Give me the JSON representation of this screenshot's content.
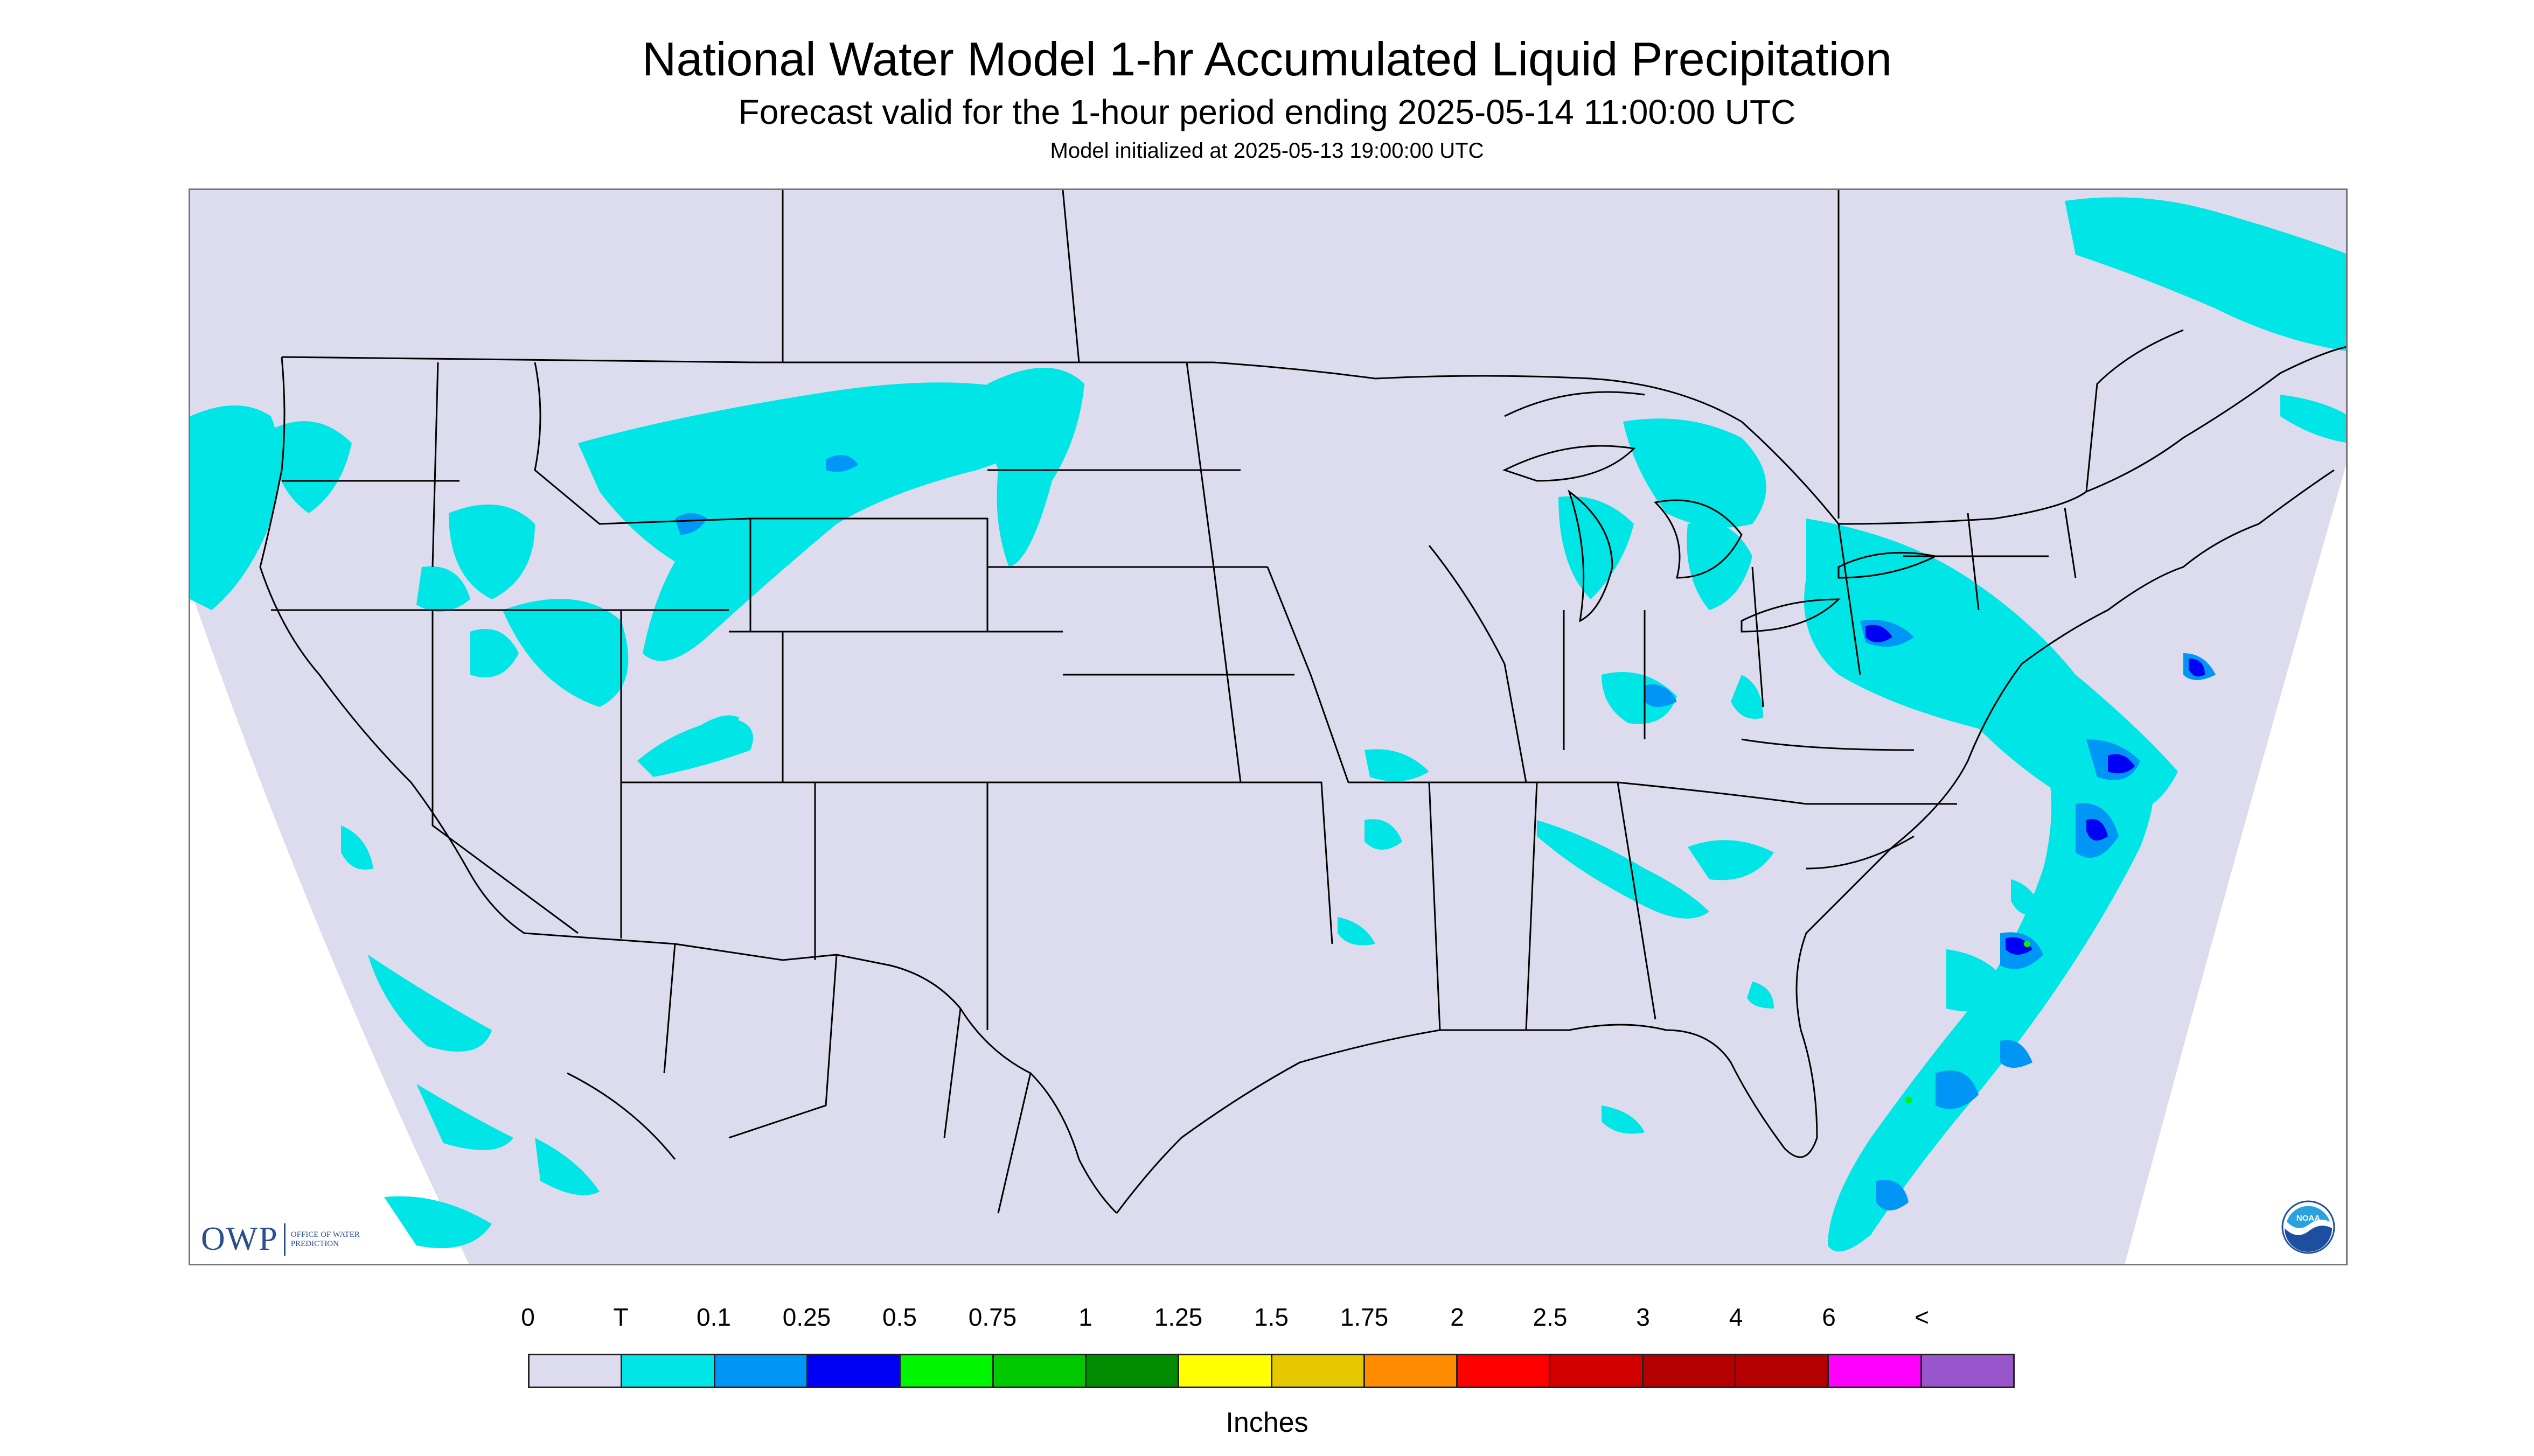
{
  "titles": {
    "main": "National Water Model 1-hr Accumulated Liquid Precipitation",
    "sub": "Forecast valid for the 1-hour period ending 2025-05-14 11:00:00 UTC",
    "init": "Model initialized at 2025-05-13 19:00:00 UTC"
  },
  "map": {
    "background_color": "#dcdcee",
    "outside_domain_color": "#ffffff",
    "boundary_color": "#000000",
    "light_precip_color": "#00e5e5",
    "moderate_precip_color": "#0096f5",
    "heavy_precip_color": "#0000f5",
    "max_precip_color": "#00f500"
  },
  "logos": {
    "owp": {
      "mark": "OWP",
      "text": "OFFICE OF WATER PREDICTION",
      "color": "#2a4f8f"
    },
    "noaa": {
      "text": "NOAA",
      "icon": "noaa-logo-icon"
    }
  },
  "legend": {
    "labels": [
      "0",
      "T",
      "0.1",
      "0.25",
      "0.5",
      "0.75",
      "1",
      "1.25",
      "1.5",
      "1.75",
      "2",
      "2.5",
      "3",
      "4",
      "6",
      "<"
    ],
    "colors": [
      "#dcdcee",
      "#00e5e5",
      "#0096f5",
      "#0000f5",
      "#00f500",
      "#00c800",
      "#008b00",
      "#ffff00",
      "#e5c800",
      "#ff8c00",
      "#ff0000",
      "#d20000",
      "#b40000",
      "#b40000",
      "#ff00ff",
      "#9955cc"
    ],
    "units": "Inches"
  }
}
